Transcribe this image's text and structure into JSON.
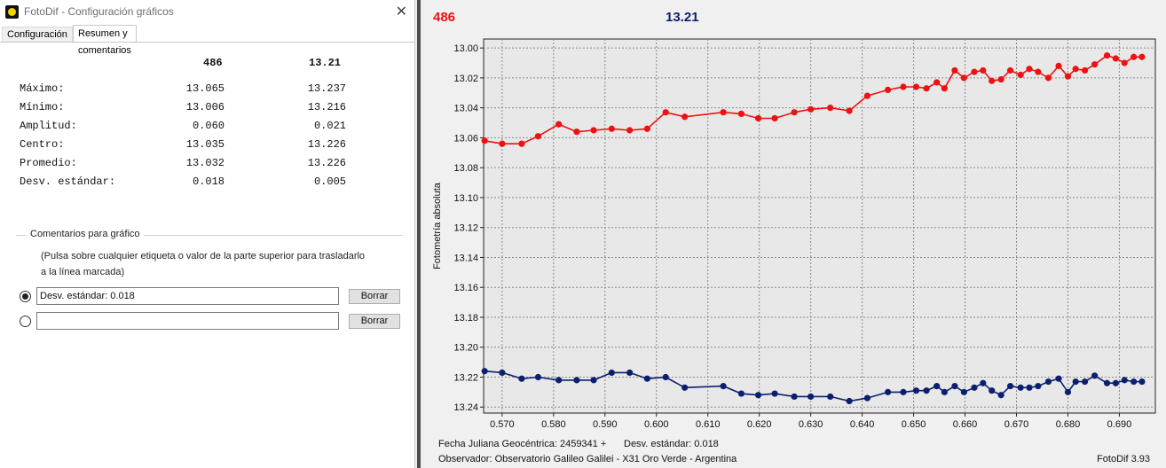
{
  "window": {
    "title": "FotoDif - Configuración gráficos"
  },
  "tabs": [
    {
      "label": "Configuración"
    },
    {
      "label": "Resumen y comentarios"
    }
  ],
  "summary": {
    "columns": [
      "486",
      "13.21"
    ],
    "rows": [
      {
        "label": "Máximo:",
        "values": [
          "13.065",
          "13.237"
        ]
      },
      {
        "label": "Mínimo:",
        "values": [
          "13.006",
          "13.216"
        ]
      },
      {
        "label": "Amplitud:",
        "values": [
          "0.060",
          "0.021"
        ]
      },
      {
        "label": "Centro:",
        "values": [
          "13.035",
          "13.226"
        ]
      },
      {
        "label": "Promedio:",
        "values": [
          "13.032",
          "13.226"
        ]
      },
      {
        "label": "Desv. estándar:",
        "values": [
          "0.018",
          "0.005"
        ]
      }
    ]
  },
  "comments": {
    "group_title": "Comentarios para gráfico",
    "note_line1": "(Pulsa sobre cualquier etiqueta o valor de la parte superior para trasladarlo",
    "note_line2": "a la línea marcada)",
    "lines": [
      {
        "value": "Desv. estándar: 0.018",
        "selected": true,
        "button": "Borrar"
      },
      {
        "value": "",
        "selected": false,
        "button": "Borrar"
      }
    ]
  },
  "chart_data": {
    "type": "line",
    "series": [
      {
        "name": "486",
        "color": "#ee1111",
        "x": [
          0.5666,
          0.57,
          0.5738,
          0.577,
          0.581,
          0.5845,
          0.5878,
          0.5913,
          0.5948,
          0.5982,
          0.6018,
          0.6055,
          0.613,
          0.6165,
          0.6198,
          0.623,
          0.6268,
          0.63,
          0.6338,
          0.6375,
          0.641,
          0.645,
          0.648,
          0.6505,
          0.6525,
          0.6545,
          0.656,
          0.658,
          0.6598,
          0.6618,
          0.6635,
          0.6652,
          0.667,
          0.6688,
          0.6708,
          0.6725,
          0.6742,
          0.6762,
          0.6782,
          0.68,
          0.6815,
          0.6833,
          0.6852,
          0.6876,
          0.6893,
          0.691,
          0.6928,
          0.6944
        ],
        "y": [
          13.062,
          13.064,
          13.064,
          13.059,
          13.051,
          13.056,
          13.055,
          13.054,
          13.055,
          13.054,
          13.043,
          13.046,
          13.043,
          13.044,
          13.047,
          13.047,
          13.043,
          13.041,
          13.04,
          13.042,
          13.032,
          13.028,
          13.026,
          13.026,
          13.027,
          13.023,
          13.027,
          13.015,
          13.02,
          13.016,
          13.015,
          13.022,
          13.021,
          13.015,
          13.018,
          13.014,
          13.016,
          13.02,
          13.012,
          13.019,
          13.014,
          13.015,
          13.011,
          13.005,
          13.007,
          13.01,
          13.006,
          13.006
        ]
      },
      {
        "name": "13.21",
        "color": "#0b1f6e",
        "x": [
          0.5666,
          0.57,
          0.5738,
          0.577,
          0.581,
          0.5845,
          0.5878,
          0.5913,
          0.5948,
          0.5982,
          0.6018,
          0.6055,
          0.613,
          0.6165,
          0.6198,
          0.623,
          0.6268,
          0.63,
          0.6338,
          0.6375,
          0.641,
          0.645,
          0.648,
          0.6505,
          0.6525,
          0.6545,
          0.656,
          0.658,
          0.6598,
          0.6618,
          0.6635,
          0.6652,
          0.667,
          0.6688,
          0.6708,
          0.6725,
          0.6742,
          0.6762,
          0.6782,
          0.68,
          0.6815,
          0.6833,
          0.6852,
          0.6876,
          0.6893,
          0.691,
          0.6928,
          0.6944
        ],
        "y": [
          13.216,
          13.217,
          13.221,
          13.22,
          13.222,
          13.222,
          13.222,
          13.217,
          13.217,
          13.221,
          13.22,
          13.227,
          13.226,
          13.231,
          13.232,
          13.231,
          13.233,
          13.233,
          13.233,
          13.236,
          13.234,
          13.23,
          13.23,
          13.229,
          13.229,
          13.226,
          13.23,
          13.226,
          13.23,
          13.227,
          13.224,
          13.229,
          13.232,
          13.226,
          13.227,
          13.227,
          13.226,
          13.223,
          13.221,
          13.23,
          13.223,
          13.223,
          13.219,
          13.224,
          13.224,
          13.222,
          13.223,
          13.223
        ]
      }
    ],
    "header_labels": [
      "486",
      "13.21"
    ],
    "ylabel": "Fotometría absoluta",
    "y_reversed": true,
    "ylim": [
      12.994,
      13.244
    ],
    "y_ticks": [
      "13.00",
      "13.02",
      "13.04",
      "13.06",
      "13.08",
      "13.10",
      "13.12",
      "13.14",
      "13.16",
      "13.18",
      "13.20",
      "13.22",
      "13.24"
    ],
    "xlim": [
      0.5664,
      0.697
    ],
    "x_ticks": [
      "0.570",
      "0.580",
      "0.590",
      "0.600",
      "0.610",
      "0.620",
      "0.630",
      "0.640",
      "0.650",
      "0.660",
      "0.670",
      "0.680",
      "0.690"
    ],
    "grid": true,
    "footer": {
      "jd": "Fecha Juliana Geocéntrica: 2459341 +",
      "std": "Desv. estándar: 0.018",
      "observer": "Observador: Observatorio Galileo Galilei - X31 Oro Verde - Argentina",
      "version": "FotoDif 3.93"
    }
  }
}
